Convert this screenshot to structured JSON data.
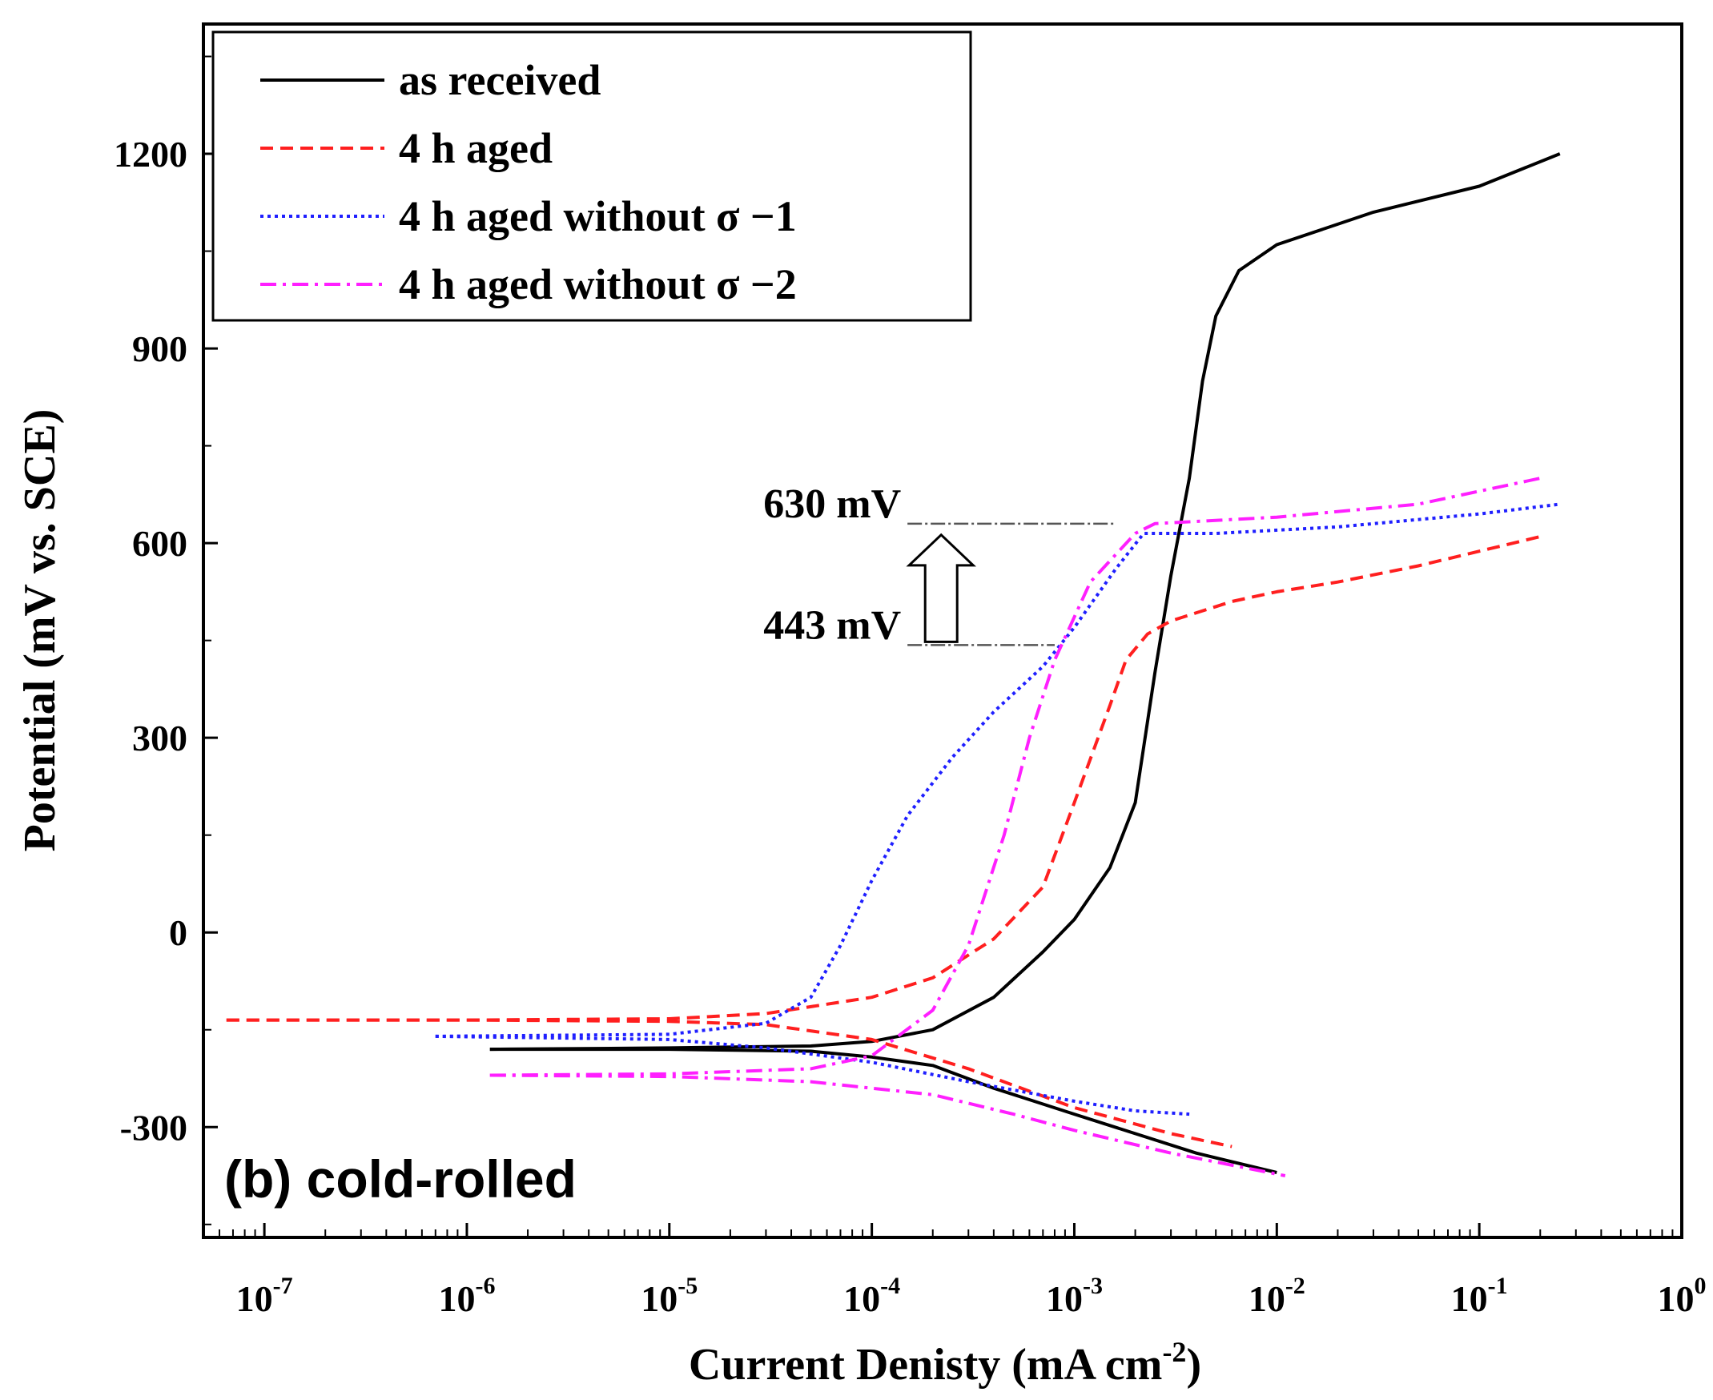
{
  "chart_data": {
    "type": "line",
    "xscale": "log",
    "xlim": [
      5e-08,
      1
    ],
    "ylim": [
      -470,
      1400
    ],
    "xlabel": "Current Denisty (mA cm",
    "xlabel_sup": "-2",
    "xlabel_tail": ")",
    "ylabel": "Potential (mV vs. SCE)",
    "panel_label": "(b) cold-rolled",
    "x_ticks": [
      {
        "value": 1e-07,
        "base": "10",
        "exp": "-7"
      },
      {
        "value": 1e-06,
        "base": "10",
        "exp": "-6"
      },
      {
        "value": 1e-05,
        "base": "10",
        "exp": "-5"
      },
      {
        "value": 0.0001,
        "base": "10",
        "exp": "-4"
      },
      {
        "value": 0.001,
        "base": "10",
        "exp": "-3"
      },
      {
        "value": 0.01,
        "base": "10",
        "exp": "-2"
      },
      {
        "value": 0.1,
        "base": "10",
        "exp": "-1"
      },
      {
        "value": 1,
        "base": "10",
        "exp": "0"
      }
    ],
    "y_ticks": [
      {
        "value": -300,
        "label": "-300"
      },
      {
        "value": 0,
        "label": "0"
      },
      {
        "value": 300,
        "label": "300"
      },
      {
        "value": 600,
        "label": "600"
      },
      {
        "value": 900,
        "label": "900"
      },
      {
        "value": 1200,
        "label": "1200"
      }
    ],
    "legend": {
      "position": "top-left"
    },
    "series": [
      {
        "name": "as received",
        "color": "#000000",
        "style": "solid",
        "anodic": [
          [
            1.3e-06,
            -180
          ],
          [
            1e-05,
            -178
          ],
          [
            5e-05,
            -175
          ],
          [
            0.0001,
            -168
          ],
          [
            0.0002,
            -150
          ],
          [
            0.0004,
            -100
          ],
          [
            0.0007,
            -30
          ],
          [
            0.001,
            20
          ],
          [
            0.0015,
            100
          ],
          [
            0.002,
            200
          ],
          [
            0.0025,
            400
          ],
          [
            0.003,
            550
          ],
          [
            0.0037,
            700
          ],
          [
            0.0043,
            850
          ],
          [
            0.005,
            950
          ],
          [
            0.0065,
            1020
          ],
          [
            0.01,
            1060
          ],
          [
            0.03,
            1110
          ],
          [
            0.1,
            1150
          ],
          [
            0.25,
            1200
          ]
        ],
        "cathodic": [
          [
            1.3e-06,
            -180
          ],
          [
            1e-05,
            -180
          ],
          [
            5e-05,
            -183
          ],
          [
            0.0001,
            -192
          ],
          [
            0.0002,
            -205
          ],
          [
            0.0004,
            -240
          ],
          [
            0.001,
            -280
          ],
          [
            0.002,
            -310
          ],
          [
            0.004,
            -340
          ],
          [
            0.01,
            -370
          ]
        ]
      },
      {
        "name": "4 h aged",
        "color": "#ff1f1f",
        "style": "dashed",
        "anodic": [
          [
            6.5e-08,
            -135
          ],
          [
            1e-06,
            -135
          ],
          [
            1e-05,
            -133
          ],
          [
            3e-05,
            -125
          ],
          [
            0.0001,
            -100
          ],
          [
            0.0002,
            -70
          ],
          [
            0.0004,
            -10
          ],
          [
            0.0007,
            70
          ],
          [
            0.001,
            200
          ],
          [
            0.0015,
            350
          ],
          [
            0.0018,
            420
          ],
          [
            0.0023,
            460
          ],
          [
            0.003,
            480
          ],
          [
            0.006,
            510
          ],
          [
            0.01,
            525
          ],
          [
            0.02,
            540
          ],
          [
            0.05,
            565
          ],
          [
            0.2,
            610
          ]
        ],
        "cathodic": [
          [
            6.5e-08,
            -135
          ],
          [
            1e-06,
            -135
          ],
          [
            1e-05,
            -137
          ],
          [
            3e-05,
            -142
          ],
          [
            0.0001,
            -165
          ],
          [
            0.0003,
            -210
          ],
          [
            0.001,
            -270
          ],
          [
            0.003,
            -310
          ],
          [
            0.006,
            -330
          ]
        ]
      },
      {
        "name": "4 h aged without σ −1",
        "color": "#1f1fff",
        "style": "dotted",
        "anodic": [
          [
            7e-07,
            -160
          ],
          [
            1e-05,
            -157
          ],
          [
            3e-05,
            -140
          ],
          [
            5e-05,
            -100
          ],
          [
            7e-05,
            -20
          ],
          [
            0.0001,
            80
          ],
          [
            0.00015,
            180
          ],
          [
            0.00025,
            270
          ],
          [
            0.0004,
            340
          ],
          [
            0.0007,
            410
          ],
          [
            0.001,
            470
          ],
          [
            0.0016,
            560
          ],
          [
            0.0022,
            615
          ],
          [
            0.005,
            615
          ],
          [
            0.02,
            625
          ],
          [
            0.1,
            645
          ],
          [
            0.25,
            660
          ]
        ],
        "cathodic": [
          [
            7e-07,
            -160
          ],
          [
            1e-05,
            -165
          ],
          [
            3e-05,
            -178
          ],
          [
            0.0001,
            -200
          ],
          [
            0.0003,
            -230
          ],
          [
            0.001,
            -260
          ],
          [
            0.002,
            -275
          ],
          [
            0.0037,
            -280
          ]
        ]
      },
      {
        "name": "4 h aged without σ −2",
        "color": "#ff1fff",
        "style": "dashdot",
        "anodic": [
          [
            1.3e-06,
            -220
          ],
          [
            1e-05,
            -218
          ],
          [
            5e-05,
            -210
          ],
          [
            0.0001,
            -190
          ],
          [
            0.0002,
            -120
          ],
          [
            0.0003,
            -20
          ],
          [
            0.00045,
            150
          ],
          [
            0.0006,
            300
          ],
          [
            0.0008,
            420
          ],
          [
            0.0012,
            540
          ],
          [
            0.002,
            615
          ],
          [
            0.0025,
            630
          ],
          [
            0.01,
            640
          ],
          [
            0.05,
            660
          ],
          [
            0.2,
            700
          ]
        ],
        "cathodic": [
          [
            1.3e-06,
            -220
          ],
          [
            1e-05,
            -222
          ],
          [
            5e-05,
            -230
          ],
          [
            0.0002,
            -250
          ],
          [
            0.0005,
            -280
          ],
          [
            0.001,
            -305
          ],
          [
            0.003,
            -340
          ],
          [
            0.011,
            -375
          ]
        ]
      }
    ],
    "annotations": [
      {
        "label": "630 mV",
        "value": 630,
        "x_start": 0.00015,
        "x_end": 0.0016
      },
      {
        "label": "443 mV",
        "value": 443,
        "x_start": 0.00015,
        "x_end": 0.0008
      }
    ]
  }
}
